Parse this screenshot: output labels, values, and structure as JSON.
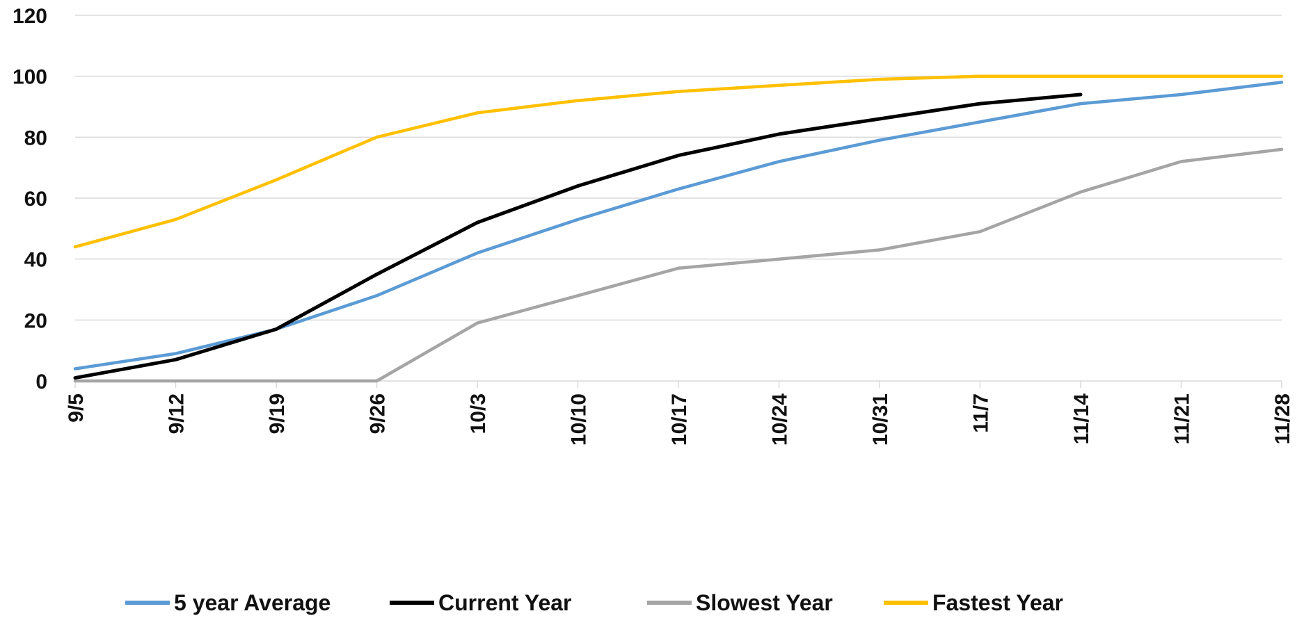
{
  "chart_data": {
    "type": "line",
    "title": "",
    "xlabel": "",
    "ylabel": "",
    "ylim": [
      0,
      120
    ],
    "yticks": [
      0,
      20,
      40,
      60,
      80,
      100,
      120
    ],
    "categories": [
      "9/5",
      "9/12",
      "9/19",
      "9/26",
      "10/3",
      "10/10",
      "10/17",
      "10/24",
      "10/31",
      "11/7",
      "11/14",
      "11/21",
      "11/28"
    ],
    "grid": true,
    "legend_position": "bottom",
    "series": [
      {
        "name": "5 year Average",
        "color": "#5b9bd5",
        "values": [
          4,
          9,
          17,
          28,
          42,
          53,
          63,
          72,
          79,
          85,
          91,
          94,
          98
        ]
      },
      {
        "name": "Current Year",
        "color": "#000000",
        "values": [
          1,
          7,
          17,
          35,
          52,
          64,
          74,
          81,
          86,
          91,
          94,
          null,
          null
        ]
      },
      {
        "name": "Slowest Year",
        "color": "#a5a5a5",
        "values": [
          0,
          0,
          0,
          0,
          19,
          28,
          37,
          40,
          43,
          49,
          62,
          72,
          76
        ]
      },
      {
        "name": "Fastest Year",
        "color": "#ffc000",
        "values": [
          44,
          53,
          66,
          80,
          88,
          92,
          95,
          97,
          99,
          100,
          100,
          100,
          100
        ]
      }
    ]
  }
}
